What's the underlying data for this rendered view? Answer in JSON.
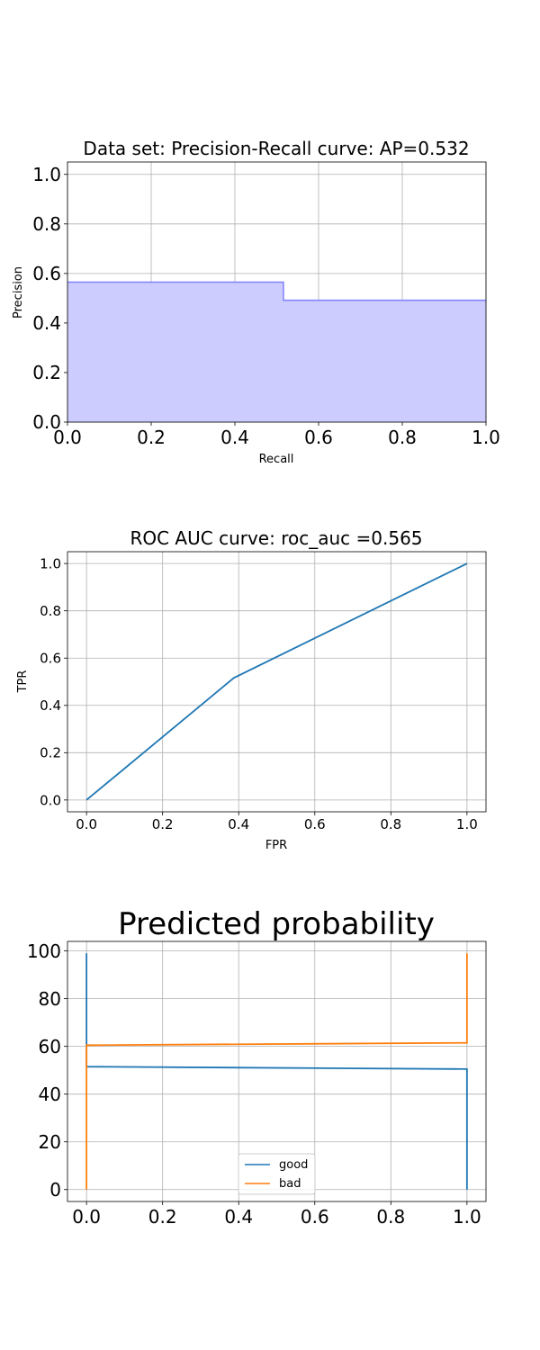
{
  "chart_data": [
    {
      "type": "area",
      "title": "Data set: Precision-Recall curve: AP=0.532",
      "xlabel": "Recall",
      "ylabel": "Precision",
      "xlim": [
        0.0,
        1.0
      ],
      "ylim": [
        0.0,
        1.05
      ],
      "xticks": [
        "0.0",
        "0.2",
        "0.4",
        "0.6",
        "0.8",
        "1.0"
      ],
      "yticks": [
        "0.0",
        "0.2",
        "0.4",
        "0.6",
        "0.8",
        "1.0"
      ],
      "grid": true,
      "step": "post",
      "fill_color": "#ccccff",
      "line_color": "#8080ff",
      "series": [
        {
          "x": [
            0.0,
            0.516,
            0.516,
            1.0
          ],
          "y": [
            0.565,
            0.565,
            0.492,
            0.492
          ]
        }
      ]
    },
    {
      "type": "line",
      "title": "ROC AUC curve: roc_auc =0.565",
      "xlabel": "FPR",
      "ylabel": "TPR",
      "xlim": [
        -0.05,
        1.05
      ],
      "ylim": [
        -0.05,
        1.05
      ],
      "xticks": [
        "0.0",
        "0.2",
        "0.4",
        "0.6",
        "0.8",
        "1.0"
      ],
      "yticks": [
        "0.0",
        "0.2",
        "0.4",
        "0.6",
        "0.8",
        "1.0"
      ],
      "grid": true,
      "series": [
        {
          "color": "#1f77b4",
          "x": [
            0.0,
            0.387,
            1.0
          ],
          "y": [
            0.0,
            0.516,
            1.0
          ]
        }
      ]
    },
    {
      "type": "line",
      "title": "Predicted probability",
      "xlabel": "",
      "ylabel": "",
      "xlim": [
        -0.05,
        1.05
      ],
      "ylim": [
        -5,
        104
      ],
      "xticks": [
        "0.0",
        "0.2",
        "0.4",
        "0.6",
        "0.8",
        "1.0"
      ],
      "yticks": [
        "0",
        "20",
        "40",
        "60",
        "80",
        "100"
      ],
      "grid": true,
      "legend_position": "lower center",
      "series": [
        {
          "name": "good",
          "color": "#1f77b4",
          "x": [
            0.0,
            0.0,
            1.0,
            1.0
          ],
          "y": [
            99,
            51.5,
            50.5,
            0
          ]
        },
        {
          "name": "bad",
          "color": "#ff7f0e",
          "x": [
            0.0,
            0.0,
            1.0,
            1.0
          ],
          "y": [
            0,
            60.5,
            61.5,
            99
          ]
        }
      ]
    }
  ]
}
